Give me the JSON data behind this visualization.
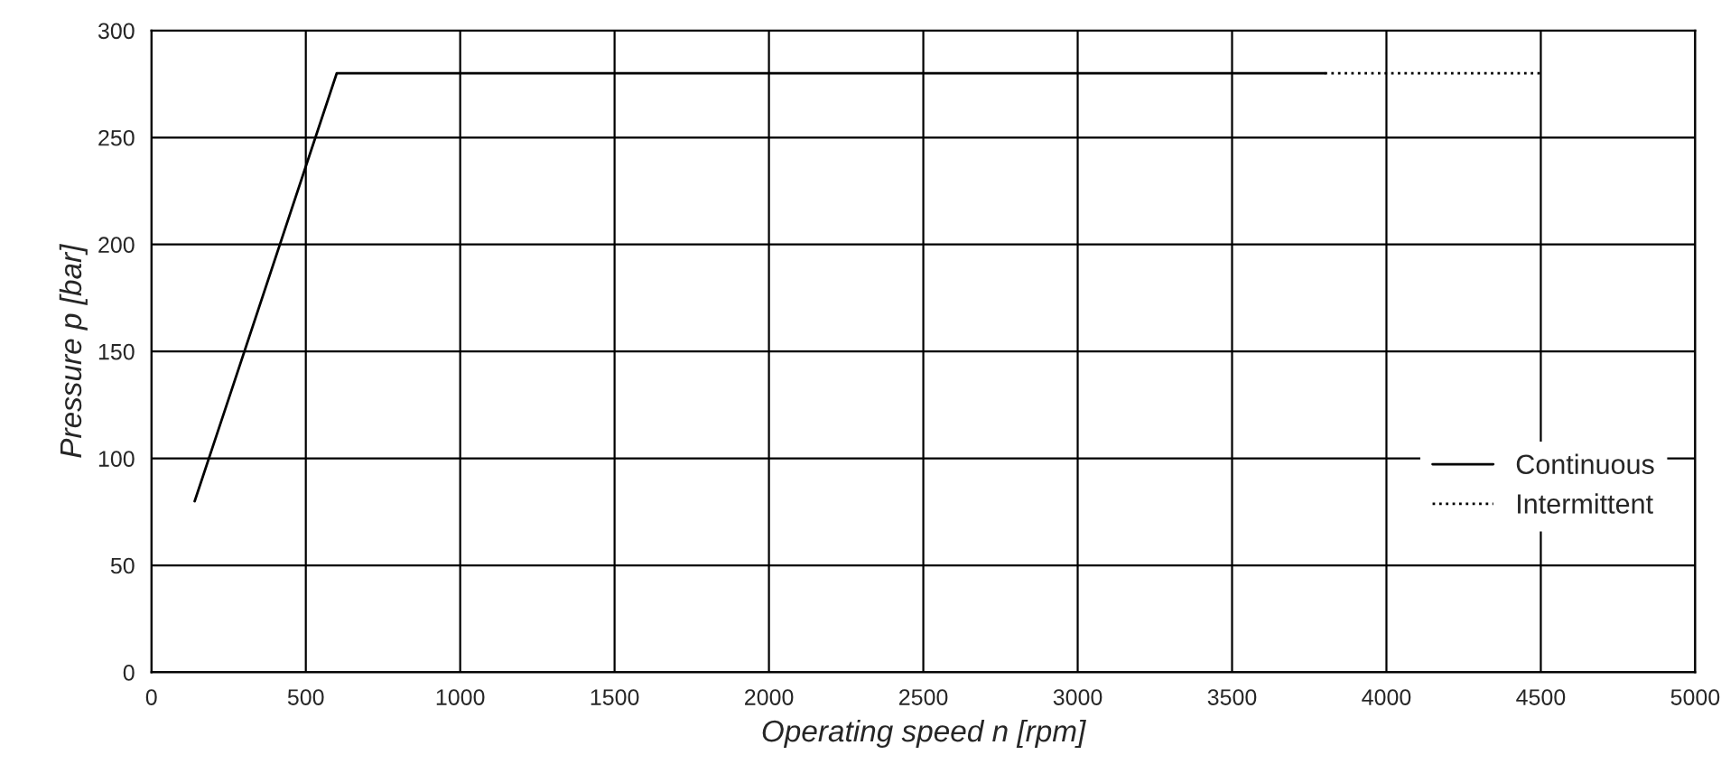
{
  "chart_data": {
    "type": "line",
    "xlabel": "Operating speed n [rpm]",
    "ylabel": "Pressure p [bar]",
    "series": [
      {
        "name": "Continuous",
        "color": "#000000",
        "x": [
          140,
          600,
          3800
        ],
        "values": [
          80,
          280,
          280
        ],
        "line_style": "solid"
      },
      {
        "name": "Intermittent",
        "color": "#000000",
        "x": [
          3800,
          4500
        ],
        "values": [
          280,
          280
        ],
        "line_style": "dotted"
      }
    ],
    "xlim": [
      0,
      5000
    ],
    "xticks": [
      0,
      500,
      1000,
      1500,
      2000,
      2500,
      3000,
      3500,
      4000,
      4500,
      5000
    ],
    "ylim": [
      0,
      300
    ],
    "yticks": [
      0,
      50,
      100,
      150,
      200,
      250,
      300
    ],
    "grid": true,
    "legend": "lower right",
    "marker": "none"
  }
}
